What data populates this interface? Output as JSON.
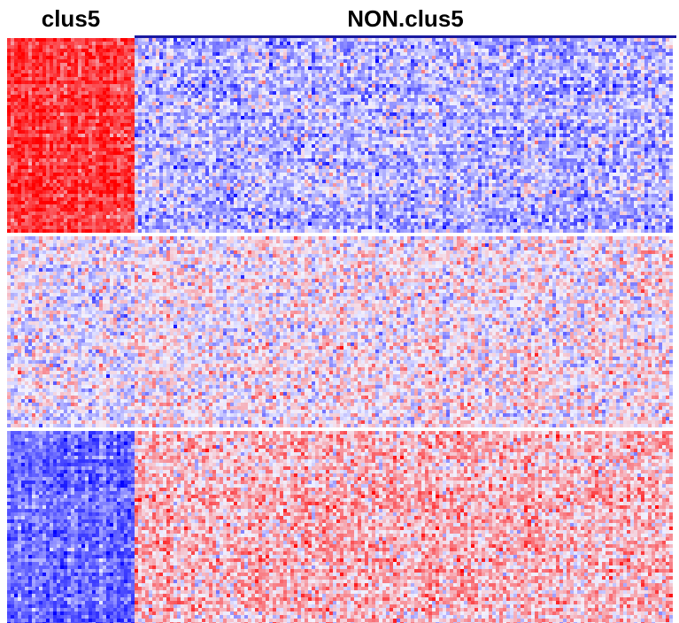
{
  "chart_data": {
    "type": "heatmap",
    "title": "",
    "column_groups": [
      {
        "label": "clus5",
        "n_columns": 36
      },
      {
        "label": "NON.clus5",
        "n_columns": 152
      }
    ],
    "row_groups": [
      {
        "n_rows": 55,
        "pattern": {
          "clus5": "high",
          "NON.clus5": "low"
        }
      },
      {
        "n_rows": 54,
        "pattern": {
          "clus5": "mixed",
          "NON.clus5": "mixed"
        }
      },
      {
        "n_rows": 55,
        "pattern": {
          "clus5": "low",
          "NON.clus5": "high"
        }
      }
    ],
    "color_scale": {
      "low": "#0000ff",
      "mid": "#f2f2ff",
      "high": "#ff0000"
    },
    "group_means": {
      "clus5": {
        "high": 0.75,
        "mixed": -0.05,
        "low": -0.55
      },
      "NON.clus5": {
        "high": 0.25,
        "mixed": 0.05,
        "low": -0.25
      }
    },
    "value_range": [
      -1,
      1
    ],
    "legend": "none"
  },
  "colors": {
    "topbar": "#1a1aa0"
  }
}
